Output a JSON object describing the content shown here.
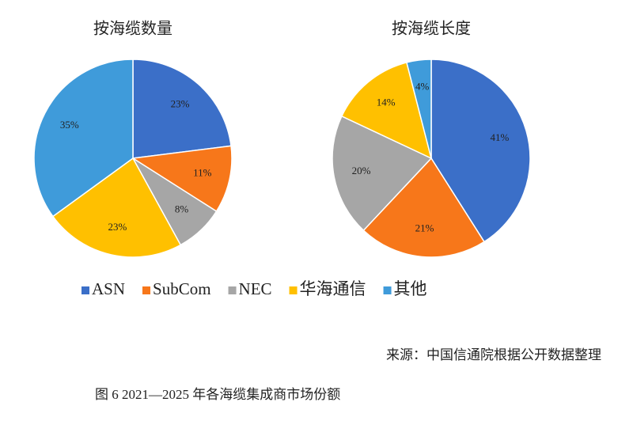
{
  "chart_data": {
    "type": "pie",
    "categories": [
      "ASN",
      "SubCom",
      "NEC",
      "华海通信",
      "其他"
    ],
    "colors": [
      "#3b6fc8",
      "#f7771a",
      "#a6a6a6",
      "#ffc000",
      "#3f9bda"
    ],
    "series": [
      {
        "name": "按海缆数量",
        "values": [
          23,
          11,
          8,
          23,
          35
        ],
        "value_labels": [
          "23%",
          "11%",
          "8%",
          "23%",
          "35%"
        ]
      },
      {
        "name": "按海缆长度",
        "values": [
          41,
          21,
          20,
          14,
          4
        ],
        "value_labels": [
          "41%",
          "21%",
          "20%",
          "14%",
          "4%"
        ]
      }
    ]
  },
  "source": "来源：中国信通院根据公开数据整理",
  "caption": "图 6 2021—2025 年各海缆集成商市场份额"
}
